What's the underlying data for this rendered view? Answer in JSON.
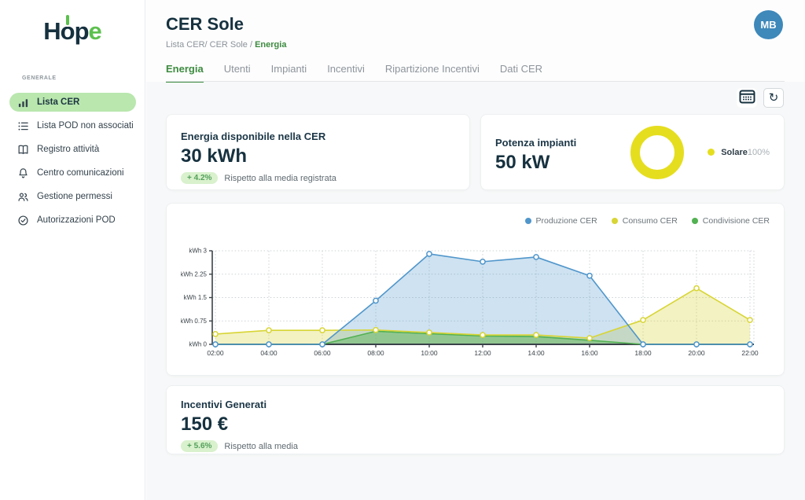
{
  "app": {
    "logo_part1": "H",
    "logo_part2": "o",
    "logo_part3": "p",
    "logo_part4": "e"
  },
  "colors": {
    "accent_green": "#3d8b40",
    "navy_text": "#16313f",
    "sidebar_active_bg": "#b9e7ae",
    "badge_bg": "#d9f1cd",
    "badge_text": "#53a05b",
    "avatar_bg": "#3e88ba",
    "donut_yellow": "#e5de1f"
  },
  "sidebar": {
    "section_label": "GENERALE",
    "items": [
      {
        "label": "Lista CER",
        "icon": "bar-chart-icon",
        "active": true
      },
      {
        "label": "Lista POD non associati",
        "icon": "list-icon",
        "active": false
      },
      {
        "label": "Registro attività",
        "icon": "book-icon",
        "active": false
      },
      {
        "label": "Centro comunicazioni",
        "icon": "bell-icon",
        "active": false
      },
      {
        "label": "Gestione permessi",
        "icon": "users-icon",
        "active": false
      },
      {
        "label": "Autorizzazioni POD",
        "icon": "check-circle-icon",
        "active": false
      }
    ]
  },
  "header": {
    "title": "CER Sole",
    "breadcrumb_prefix": "Lista CER/ CER Sole / ",
    "breadcrumb_current": "Energia",
    "avatar_initials": "MB"
  },
  "tabs": [
    {
      "label": "Energia",
      "active": true
    },
    {
      "label": "Utenti",
      "active": false
    },
    {
      "label": "Impianti",
      "active": false
    },
    {
      "label": "Incentivi",
      "active": false
    },
    {
      "label": "Ripartizione Incentivi",
      "active": false
    },
    {
      "label": "Dati CER",
      "active": false
    }
  ],
  "toolbar": {
    "calendar_icon": "calendar-icon",
    "refresh_icon": "refresh-icon",
    "refresh_glyph": "↻"
  },
  "cards": {
    "energy": {
      "title": "Energia disponibile nella CER",
      "value": "30 kWh",
      "badge": "+ 4.2%",
      "caption": "Rispetto alla media registrata"
    },
    "power": {
      "title": "Potenza impianti",
      "value": "50 kW"
    },
    "incentives": {
      "title": "Incentivi Generati",
      "value": "150 €",
      "badge": "+ 5.6%",
      "caption": "Rispetto alla media"
    }
  },
  "chart_data": [
    {
      "type": "pie",
      "donut": true,
      "title": "Potenza impianti",
      "labels": [
        "Solare"
      ],
      "values": [
        100
      ],
      "display_values": [
        "100%"
      ],
      "colors": [
        "#e5de1f"
      ],
      "legend_position": "right"
    },
    {
      "type": "area",
      "x": [
        "02:00",
        "04:00",
        "06:00",
        "08:00",
        "10:00",
        "12:00",
        "14:00",
        "16:00",
        "18:00",
        "20:00",
        "22:00"
      ],
      "series": [
        {
          "name": "Produzione CER",
          "color": "#5096cb",
          "fill_opacity": 0.28,
          "markers": true,
          "values": [
            0,
            0,
            0,
            1.4,
            2.9,
            2.65,
            2.8,
            2.2,
            0,
            0,
            0
          ]
        },
        {
          "name": "Consumo CER",
          "color": "#d8d535",
          "fill_opacity": 0.3,
          "markers": true,
          "values": [
            0.33,
            0.45,
            0.45,
            0.46,
            0.38,
            0.3,
            0.3,
            0.2,
            0.78,
            1.8,
            0.78
          ]
        },
        {
          "name": "Condivisione CER",
          "color": "#52b152",
          "fill_opacity": 0.45,
          "markers": false,
          "values": [
            0,
            0,
            0,
            0.42,
            0.34,
            0.27,
            0.25,
            0.13,
            0,
            0,
            0
          ]
        }
      ],
      "ytick_prefix": "kWh",
      "yticks": [
        0,
        0.75,
        1.5,
        2.25,
        3
      ],
      "ylim": [
        0,
        3
      ],
      "grid": true,
      "legend_position": "top-right"
    }
  ]
}
